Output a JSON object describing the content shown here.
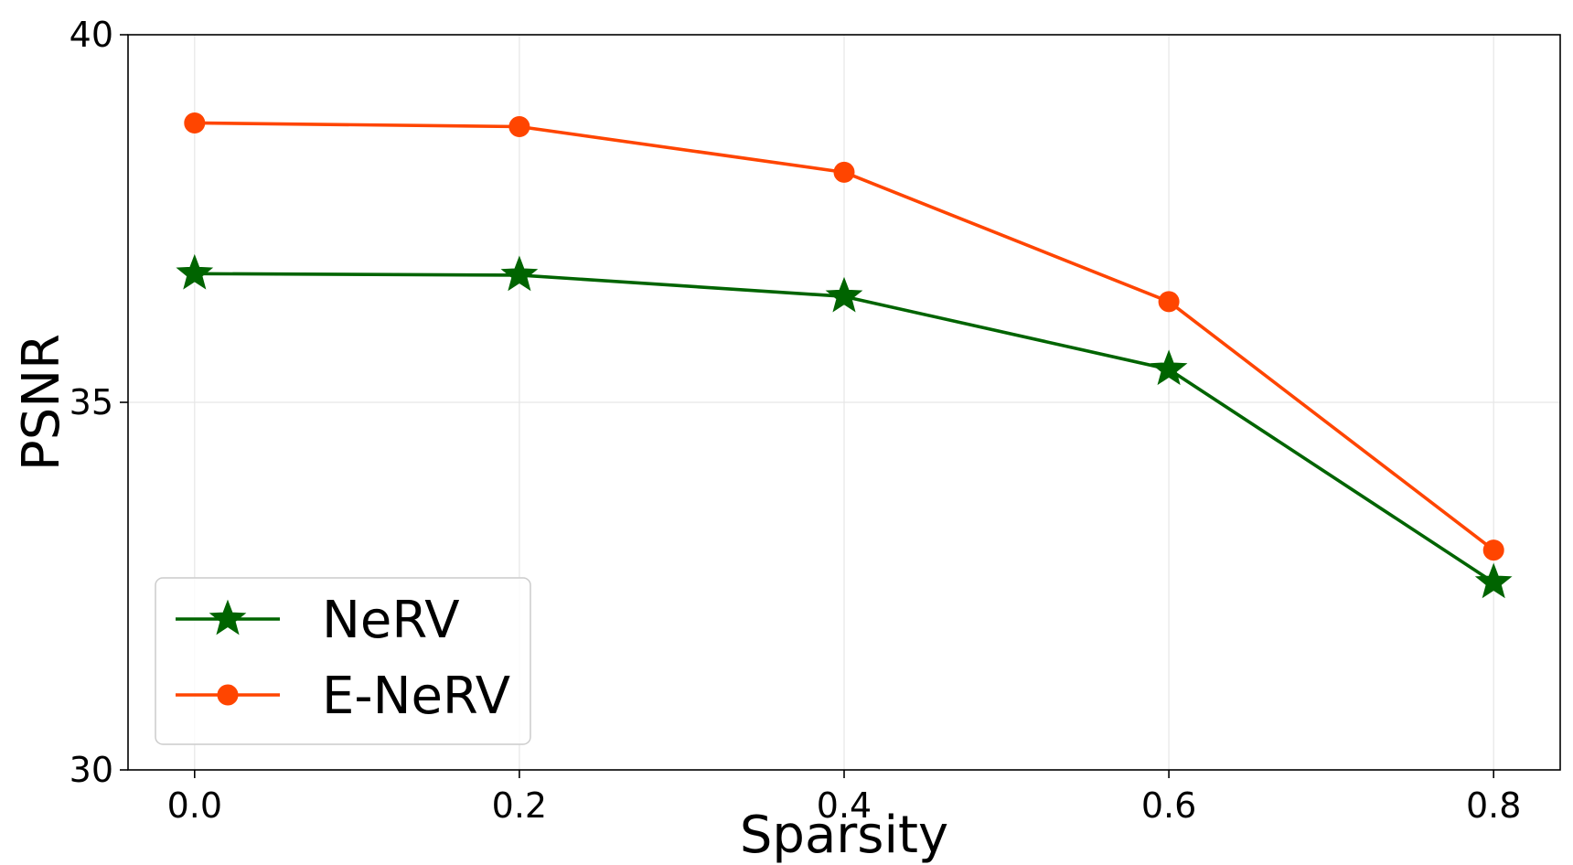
{
  "chart_data": {
    "type": "line",
    "title": "",
    "xlabel": "Sparsity",
    "ylabel": "PSNR",
    "x": [
      0.0,
      0.2,
      0.4,
      0.6,
      0.8
    ],
    "xticks": [
      0.0,
      0.2,
      0.4,
      0.6,
      0.8
    ],
    "xtick_labels": [
      "0.0",
      "0.2",
      "0.4",
      "0.6",
      "0.8"
    ],
    "xlim": [
      -0.041,
      0.841
    ],
    "yticks": [
      30,
      35,
      40
    ],
    "ytick_labels": [
      "30",
      "35",
      "40"
    ],
    "ylim": [
      30,
      40
    ],
    "grid": true,
    "legend_position": "lower-left",
    "series": [
      {
        "name": "NeRV",
        "values": [
          36.75,
          36.73,
          36.44,
          35.45,
          32.55
        ],
        "color": "#006400",
        "marker": "star"
      },
      {
        "name": "E-NeRV",
        "values": [
          38.8,
          38.75,
          38.13,
          36.37,
          32.99
        ],
        "color": "#ff4500",
        "marker": "circle"
      }
    ]
  }
}
